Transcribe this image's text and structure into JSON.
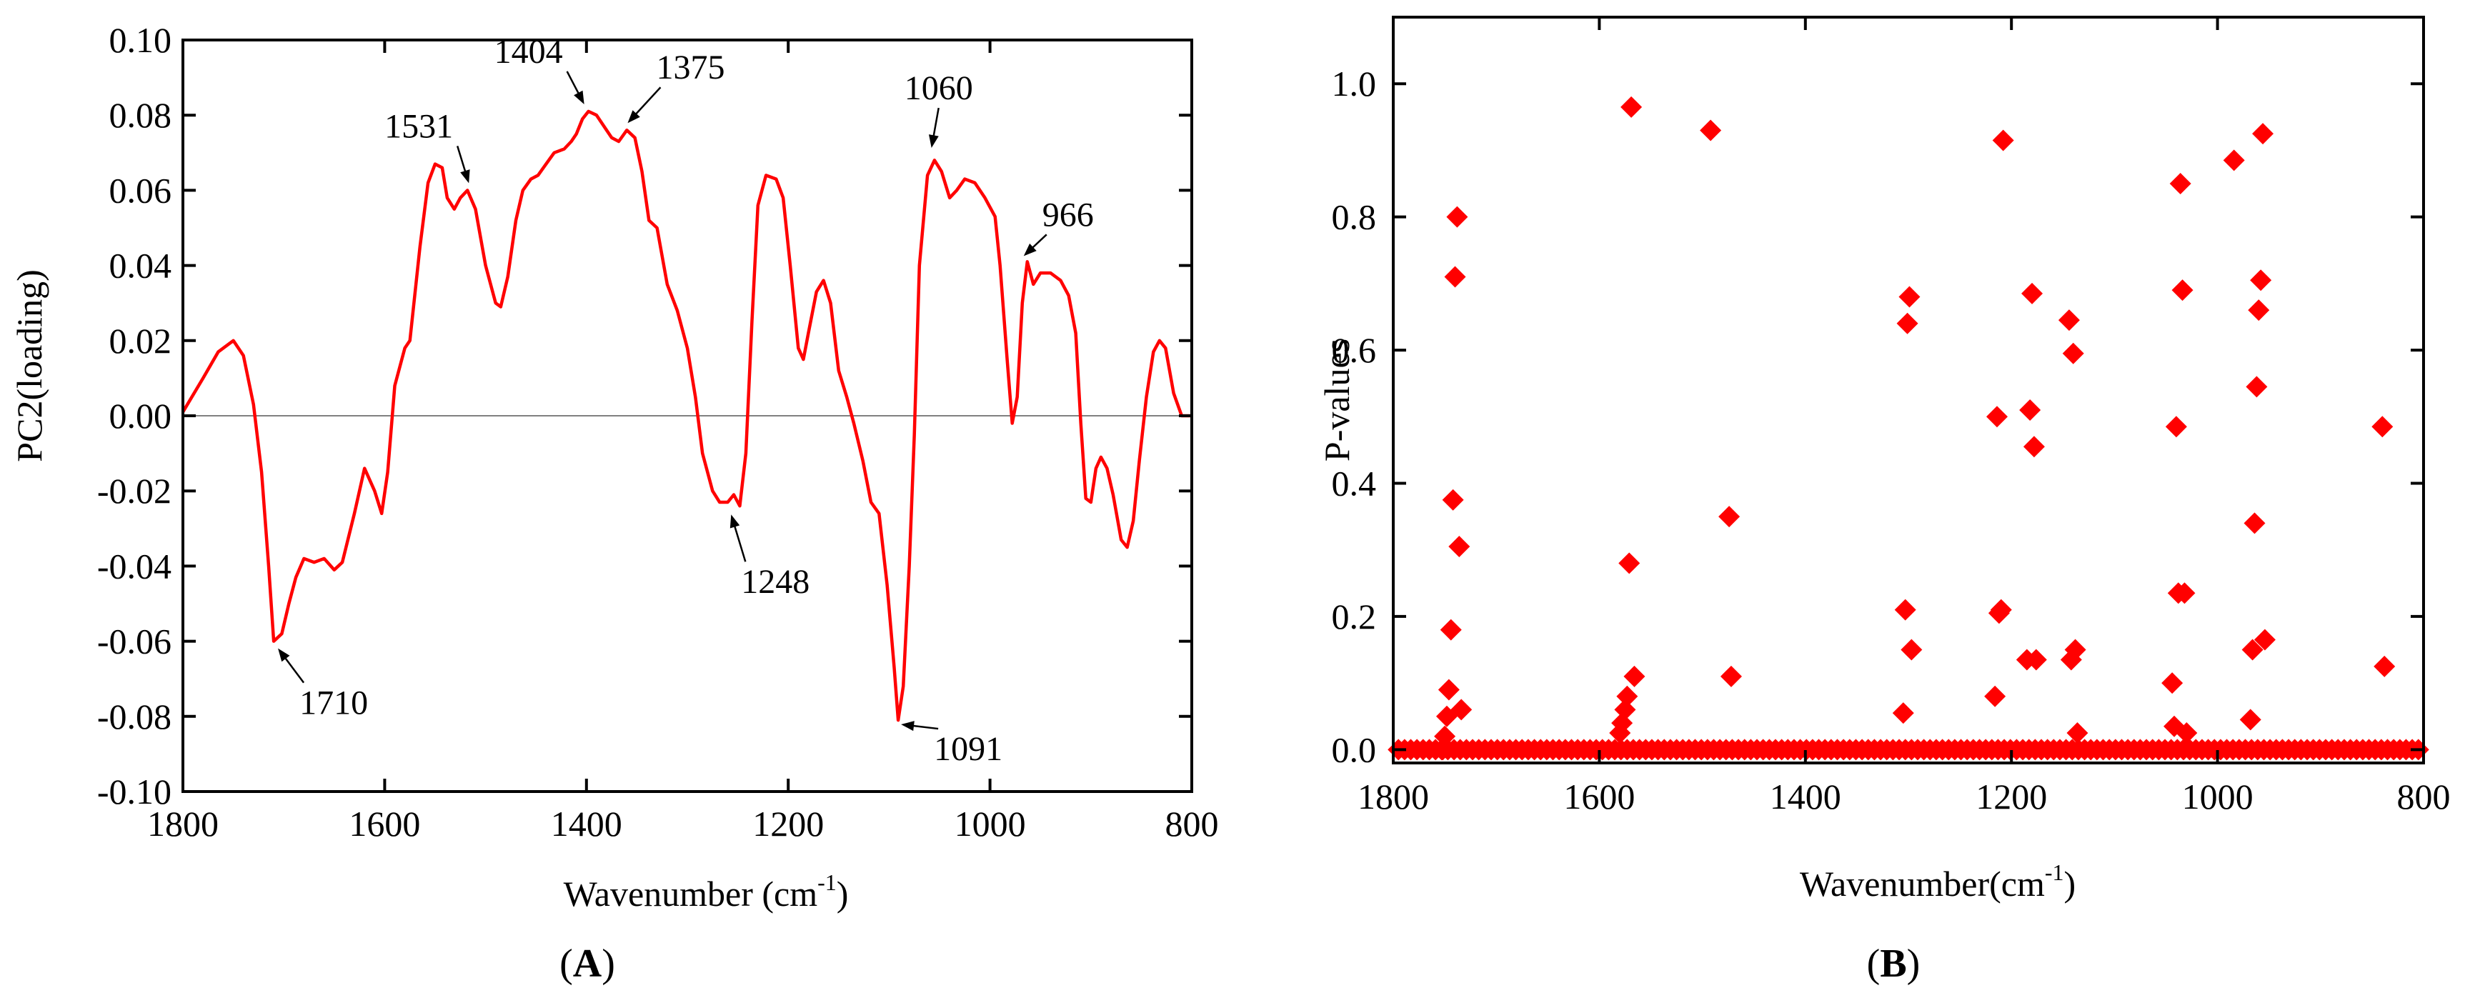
{
  "chart_data": [
    {
      "panel": "A",
      "type": "line",
      "panel_label": "A",
      "xlabel": "Wavenumber (cm",
      "xlabel_sup": "-1",
      "xlabel_close": ")",
      "ylabel": "PC2(loading)",
      "xlim": [
        1800,
        800
      ],
      "ylim": [
        -0.1,
        0.1
      ],
      "xticks": [
        1800,
        1600,
        1400,
        1200,
        1000,
        800
      ],
      "yticks": [
        "0.10",
        "0.08",
        "0.06",
        "0.04",
        "0.02",
        "0.00",
        "-0.02",
        "-0.04",
        "-0.06",
        "-0.08",
        "-0.10"
      ],
      "zero_line": true,
      "series": [
        {
          "name": "PC2 loading",
          "color": "#ff0000",
          "points": [
            [
              1800,
              0.001
            ],
            [
              1780,
              0.01
            ],
            [
              1765,
              0.017
            ],
            [
              1750,
              0.02
            ],
            [
              1740,
              0.016
            ],
            [
              1730,
              0.003
            ],
            [
              1722,
              -0.015
            ],
            [
              1715,
              -0.04
            ],
            [
              1710,
              -0.06
            ],
            [
              1702,
              -0.058
            ],
            [
              1695,
              -0.05
            ],
            [
              1688,
              -0.043
            ],
            [
              1680,
              -0.038
            ],
            [
              1670,
              -0.039
            ],
            [
              1660,
              -0.038
            ],
            [
              1650,
              -0.041
            ],
            [
              1642,
              -0.039
            ],
            [
              1630,
              -0.026
            ],
            [
              1620,
              -0.014
            ],
            [
              1610,
              -0.02
            ],
            [
              1603,
              -0.026
            ],
            [
              1597,
              -0.015
            ],
            [
              1590,
              0.008
            ],
            [
              1580,
              0.018
            ],
            [
              1575,
              0.02
            ],
            [
              1565,
              0.045
            ],
            [
              1557,
              0.062
            ],
            [
              1550,
              0.067
            ],
            [
              1543,
              0.066
            ],
            [
              1538,
              0.058
            ],
            [
              1531,
              0.055
            ],
            [
              1525,
              0.058
            ],
            [
              1518,
              0.06
            ],
            [
              1510,
              0.055
            ],
            [
              1500,
              0.04
            ],
            [
              1490,
              0.03
            ],
            [
              1485,
              0.029
            ],
            [
              1478,
              0.037
            ],
            [
              1470,
              0.052
            ],
            [
              1463,
              0.06
            ],
            [
              1455,
              0.063
            ],
            [
              1448,
              0.064
            ],
            [
              1440,
              0.067
            ],
            [
              1432,
              0.07
            ],
            [
              1422,
              0.071
            ],
            [
              1415,
              0.073
            ],
            [
              1410,
              0.075
            ],
            [
              1404,
              0.079
            ],
            [
              1398,
              0.081
            ],
            [
              1390,
              0.08
            ],
            [
              1380,
              0.076
            ],
            [
              1375,
              0.074
            ],
            [
              1368,
              0.073
            ],
            [
              1360,
              0.076
            ],
            [
              1352,
              0.074
            ],
            [
              1345,
              0.065
            ],
            [
              1338,
              0.052
            ],
            [
              1330,
              0.05
            ],
            [
              1320,
              0.035
            ],
            [
              1310,
              0.028
            ],
            [
              1300,
              0.018
            ],
            [
              1292,
              0.005
            ],
            [
              1285,
              -0.01
            ],
            [
              1275,
              -0.02
            ],
            [
              1268,
              -0.023
            ],
            [
              1260,
              -0.023
            ],
            [
              1254,
              -0.021
            ],
            [
              1248,
              -0.024
            ],
            [
              1242,
              -0.01
            ],
            [
              1236,
              0.025
            ],
            [
              1230,
              0.056
            ],
            [
              1222,
              0.064
            ],
            [
              1212,
              0.063
            ],
            [
              1205,
              0.058
            ],
            [
              1198,
              0.04
            ],
            [
              1190,
              0.018
            ],
            [
              1185,
              0.015
            ],
            [
              1180,
              0.022
            ],
            [
              1172,
              0.033
            ],
            [
              1165,
              0.036
            ],
            [
              1158,
              0.03
            ],
            [
              1150,
              0.012
            ],
            [
              1142,
              0.005
            ],
            [
              1135,
              -0.002
            ],
            [
              1126,
              -0.012
            ],
            [
              1118,
              -0.023
            ],
            [
              1110,
              -0.026
            ],
            [
              1102,
              -0.045
            ],
            [
              1095,
              -0.067
            ],
            [
              1091,
              -0.081
            ],
            [
              1086,
              -0.072
            ],
            [
              1080,
              -0.04
            ],
            [
              1075,
              -0.005
            ],
            [
              1070,
              0.04
            ],
            [
              1062,
              0.064
            ],
            [
              1055,
              0.068
            ],
            [
              1048,
              0.065
            ],
            [
              1040,
              0.058
            ],
            [
              1033,
              0.06
            ],
            [
              1025,
              0.063
            ],
            [
              1015,
              0.062
            ],
            [
              1005,
              0.058
            ],
            [
              995,
              0.053
            ],
            [
              990,
              0.04
            ],
            [
              983,
              0.015
            ],
            [
              978,
              -0.002
            ],
            [
              973,
              0.005
            ],
            [
              968,
              0.03
            ],
            [
              963,
              0.041
            ],
            [
              957,
              0.035
            ],
            [
              950,
              0.038
            ],
            [
              940,
              0.038
            ],
            [
              930,
              0.036
            ],
            [
              922,
              0.032
            ],
            [
              915,
              0.022
            ],
            [
              910,
              -0.002
            ],
            [
              905,
              -0.022
            ],
            [
              900,
              -0.023
            ],
            [
              895,
              -0.014
            ],
            [
              890,
              -0.011
            ],
            [
              884,
              -0.014
            ],
            [
              878,
              -0.021
            ],
            [
              870,
              -0.033
            ],
            [
              864,
              -0.035
            ],
            [
              858,
              -0.028
            ],
            [
              852,
              -0.012
            ],
            [
              845,
              0.005
            ],
            [
              838,
              0.017
            ],
            [
              832,
              0.02
            ],
            [
              826,
              0.018
            ],
            [
              818,
              0.006
            ],
            [
              810,
              0.0
            ],
            [
              800,
              0.0
            ]
          ]
        }
      ],
      "annotations": [
        {
          "text": "1710",
          "x": 1710,
          "y": -0.06
        },
        {
          "text": "1531",
          "x": 1518,
          "y": 0.06
        },
        {
          "text": "1404",
          "x": 1398,
          "y": 0.081
        },
        {
          "text": "1375",
          "x": 1362,
          "y": 0.076
        },
        {
          "text": "1248",
          "x": 1258,
          "y": -0.024
        },
        {
          "text": "1060",
          "x": 1058,
          "y": 0.069
        },
        {
          "text": "1091",
          "x": 1091,
          "y": -0.081
        },
        {
          "text": "966",
          "x": 968,
          "y": 0.041
        }
      ]
    },
    {
      "panel": "B",
      "type": "scatter",
      "panel_label": "B",
      "xlabel": "Wavenumber(cm",
      "xlabel_sup": "-1",
      "xlabel_close": ")",
      "ylabel": "P-values",
      "xlim": [
        1800,
        800
      ],
      "ylim": [
        -0.02,
        1.1
      ],
      "xticks": [
        1800,
        1600,
        1400,
        1200,
        1000,
        800
      ],
      "yticks": [
        "0.0",
        "0.2",
        "0.4",
        "0.6",
        "0.8",
        "1.0"
      ],
      "marker": "diamond",
      "color": "#ff0000",
      "baseline_note": "dense row of points at P = 0.00 across the full wavenumber range",
      "points": [
        [
          1752,
          0.0
        ],
        [
          1750,
          0.02
        ],
        [
          1748,
          0.05
        ],
        [
          1746,
          0.09
        ],
        [
          1744,
          0.18
        ],
        [
          1742,
          0.375
        ],
        [
          1740,
          0.71
        ],
        [
          1738,
          0.8
        ],
        [
          1736,
          0.305
        ],
        [
          1734,
          0.06
        ],
        [
          1580,
          0.025
        ],
        [
          1578,
          0.04
        ],
        [
          1575,
          0.06
        ],
        [
          1573,
          0.08
        ],
        [
          1571,
          0.28
        ],
        [
          1569,
          0.965
        ],
        [
          1566,
          0.11
        ],
        [
          1492,
          0.93
        ],
        [
          1474,
          0.35
        ],
        [
          1472,
          0.11
        ],
        [
          1305,
          0.055
        ],
        [
          1303,
          0.21
        ],
        [
          1301,
          0.64
        ],
        [
          1299,
          0.68
        ],
        [
          1297,
          0.15
        ],
        [
          1216,
          0.08
        ],
        [
          1214,
          0.5
        ],
        [
          1212,
          0.205
        ],
        [
          1210,
          0.21
        ],
        [
          1208,
          0.915
        ],
        [
          1185,
          0.135
        ],
        [
          1182,
          0.51
        ],
        [
          1180,
          0.685
        ],
        [
          1178,
          0.455
        ],
        [
          1176,
          0.135
        ],
        [
          1144,
          0.645
        ],
        [
          1142,
          0.135
        ],
        [
          1140,
          0.595
        ],
        [
          1138,
          0.15
        ],
        [
          1136,
          0.025
        ],
        [
          1044,
          0.1
        ],
        [
          1042,
          0.035
        ],
        [
          1040,
          0.485
        ],
        [
          1038,
          0.235
        ],
        [
          1036,
          0.85
        ],
        [
          1034,
          0.69
        ],
        [
          1032,
          0.235
        ],
        [
          1030,
          0.025
        ],
        [
          984,
          0.885
        ],
        [
          968,
          0.045
        ],
        [
          966,
          0.15
        ],
        [
          964,
          0.34
        ],
        [
          962,
          0.545
        ],
        [
          960,
          0.66
        ],
        [
          958,
          0.705
        ],
        [
          956,
          0.925
        ],
        [
          954,
          0.165
        ],
        [
          840,
          0.485
        ],
        [
          838,
          0.125
        ]
      ]
    }
  ]
}
